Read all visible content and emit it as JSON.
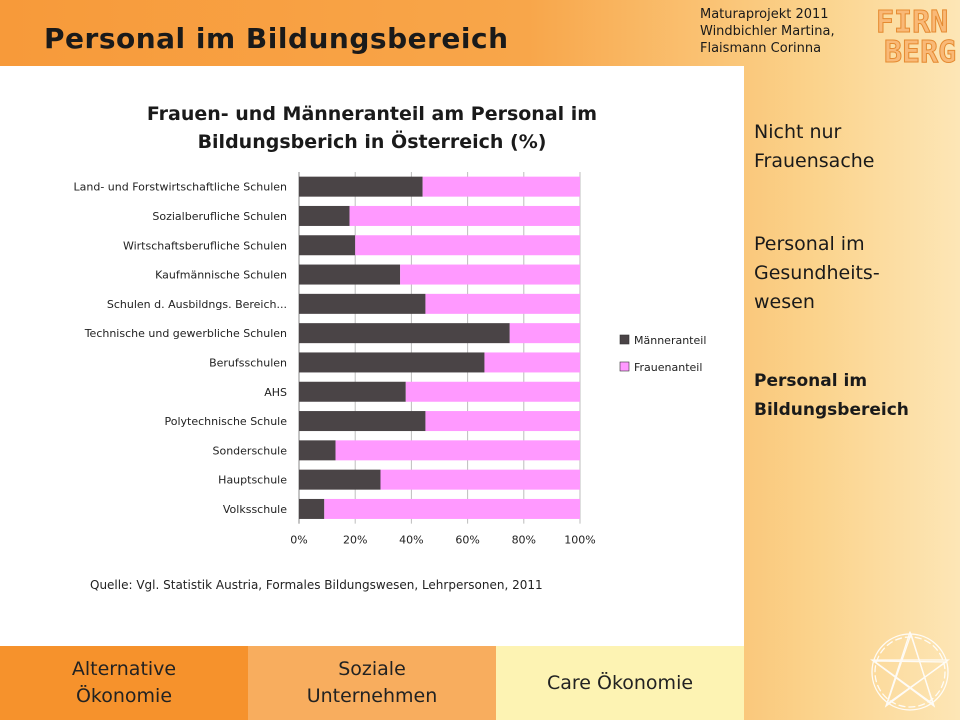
{
  "header": {
    "title": "Personal im Bildungsbereich",
    "credits": [
      "Maturaprojekt 2011",
      "Windbichler Martina,",
      "Flaismann Corinna"
    ],
    "logo_lines": [
      "FIRN",
      "BERG"
    ]
  },
  "side_nav": {
    "items": [
      {
        "label": "Nicht nur\nFrauensache",
        "active": false
      },
      {
        "label": "Personal im\nGesundheits-\nwesen",
        "active": false
      },
      {
        "label": "Personal im\nBildungsbereich",
        "active": true
      }
    ]
  },
  "bottom_tabs": [
    {
      "label": "Alternative\nÖkonomie"
    },
    {
      "label": "Soziale\nUnternehmen"
    },
    {
      "label": "Care Ökonomie"
    }
  ],
  "source": "Quelle: Vgl. Statistik Austria, Formales Bildungswesen, Lehrpersonen, 2011",
  "colors": {
    "maenner": "#4a4446",
    "frauen": "#ff99ff",
    "grid": "#bdbdbd"
  },
  "chart_data": {
    "type": "bar",
    "orientation": "horizontal",
    "stacked": true,
    "title_lines": [
      "Frauen- und Männeranteil am Personal im",
      "Bildungsberich in Österreich (%)"
    ],
    "categories": [
      "Land- und Forstwirtschaftliche Schulen",
      "Sozialberufliche Schulen",
      "Wirtschaftsberufliche Schulen",
      "Kaufmännische Schulen",
      "Schulen d. Ausbildngs. Bereich...",
      "Technische und gewerbliche Schulen",
      "Berufsschulen",
      "AHS",
      "Polytechnische Schule",
      "Sonderschule",
      "Hauptschule",
      "Volksschule"
    ],
    "series": [
      {
        "name": "Männeranteil",
        "values": [
          44,
          18,
          20,
          36,
          45,
          75,
          66,
          38,
          45,
          13,
          29,
          9
        ]
      },
      {
        "name": "Frauenanteil",
        "values": [
          56,
          82,
          80,
          64,
          55,
          25,
          34,
          62,
          55,
          87,
          71,
          91
        ]
      }
    ],
    "x_ticks": [
      "0%",
      "20%",
      "40%",
      "60%",
      "80%",
      "100%"
    ],
    "xlim": [
      0,
      100
    ],
    "grid": true,
    "legend_position": "right"
  }
}
